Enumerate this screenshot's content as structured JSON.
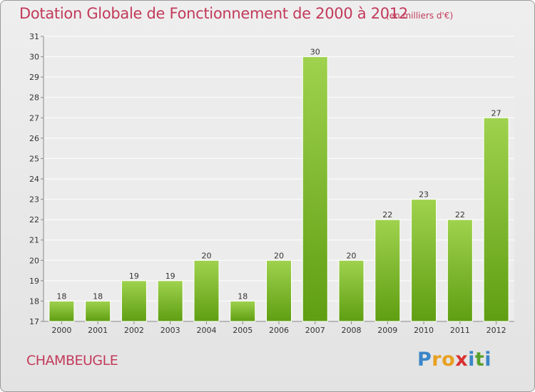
{
  "chart_data": {
    "type": "bar",
    "title": "Dotation Globale de Fonctionnement de 2000 à 2012",
    "subtitle": "(en milliers d'€)",
    "xlabel": "",
    "ylabel": "",
    "categories": [
      "2000",
      "2001",
      "2002",
      "2003",
      "2004",
      "2005",
      "2006",
      "2007",
      "2008",
      "2009",
      "2010",
      "2011",
      "2012"
    ],
    "values": [
      18,
      18,
      19,
      19,
      20,
      18,
      20,
      30,
      20,
      22,
      23,
      22,
      27
    ],
    "ylim": [
      17,
      31
    ],
    "yticks": [
      17,
      18,
      19,
      20,
      21,
      22,
      23,
      24,
      25,
      26,
      27,
      28,
      29,
      30,
      31
    ],
    "grid": true,
    "bar_color_top": "#9fd24e",
    "bar_color_bottom": "#5f9e12"
  },
  "footer": {
    "commune": "CHAMBEUGLE",
    "logo": {
      "letters": [
        "P",
        "r",
        "o",
        "x",
        "i",
        "t",
        "i"
      ],
      "colors": [
        "#3a86c8",
        "#e8a020",
        "#e8a020",
        "#d83030",
        "#3a86c8",
        "#5aa02c",
        "#3a86c8"
      ]
    }
  }
}
